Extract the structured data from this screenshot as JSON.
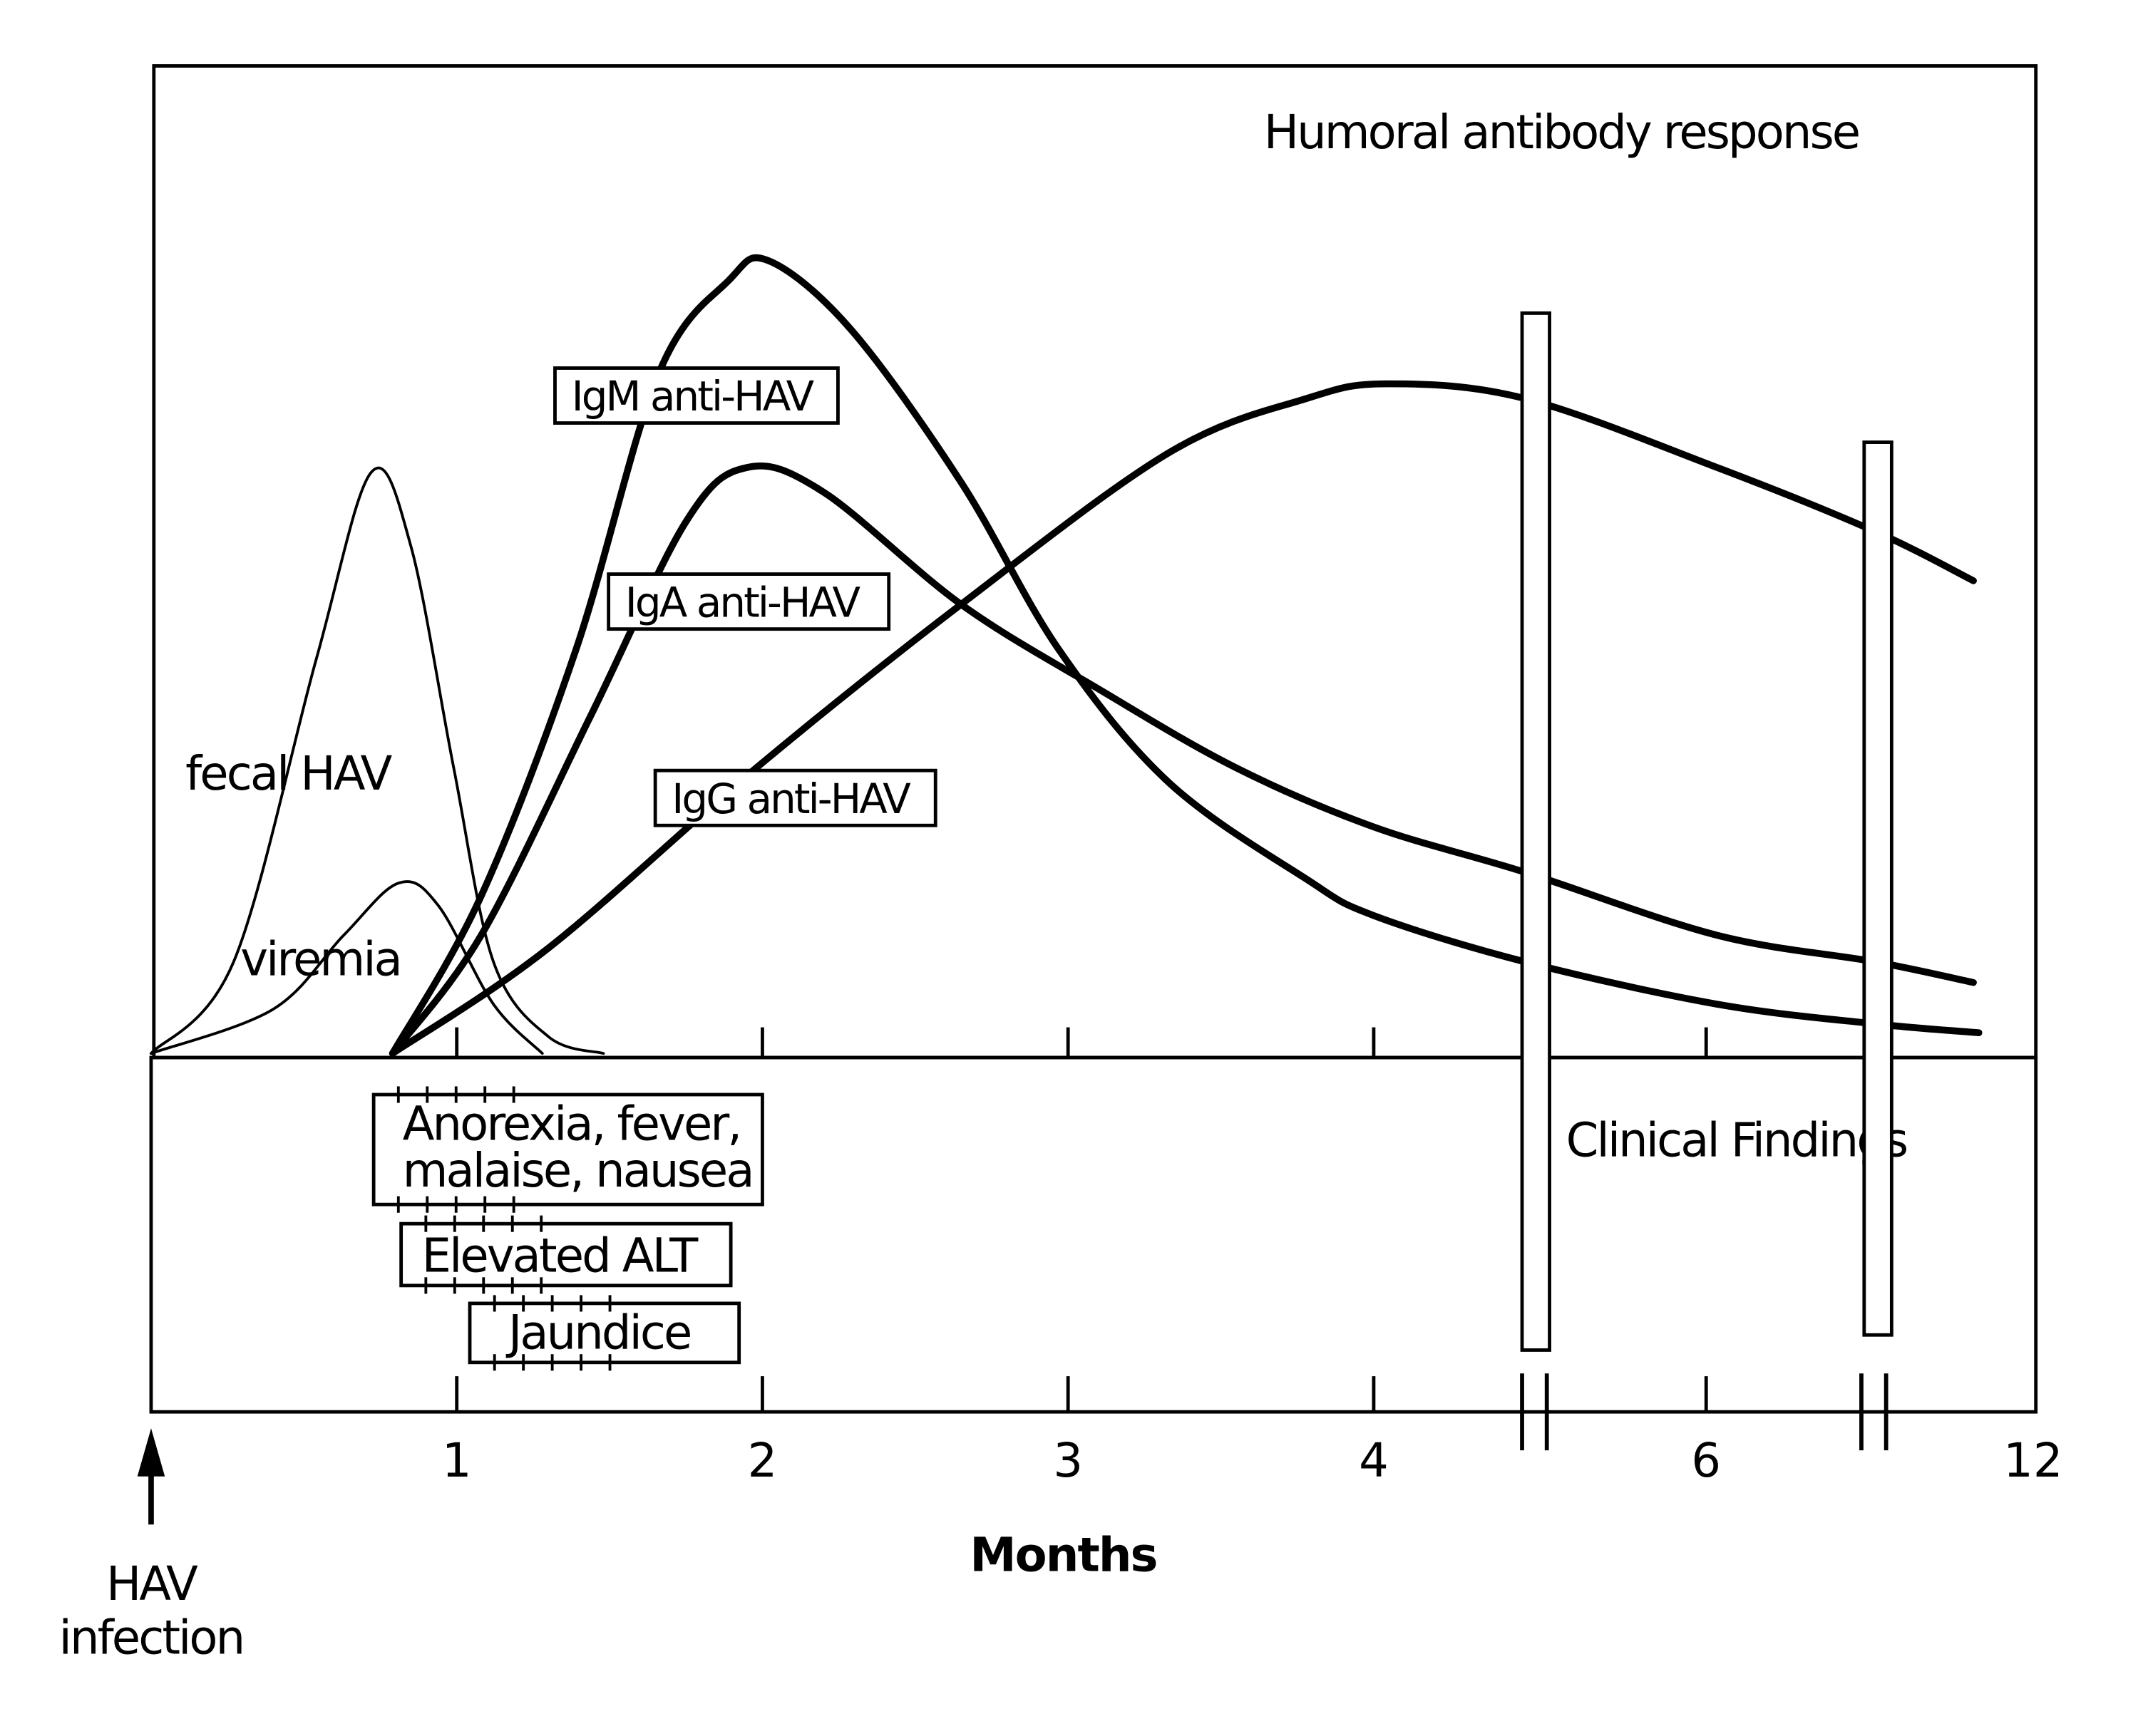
{
  "chart_data": {
    "type": "line",
    "title": "Humoral antibody response",
    "lower_panel_title": "Clinical Findings",
    "xlabel": "Months",
    "ylabel": "",
    "x_ticks": [
      "1",
      "2",
      "3",
      "4",
      "6",
      "12"
    ],
    "x_tick_values": [
      1,
      2,
      3,
      4,
      6,
      12
    ],
    "x_axis_breaks": [
      5,
      9.1
    ],
    "x_range": [
      0,
      12
    ],
    "y_range": [
      0,
      100
    ],
    "grid": false,
    "legend": "none (series labelled inline)",
    "start_marker": {
      "label_line1": "HAV",
      "label_line2": "infection",
      "x": 0,
      "icon": "up-arrow-icon"
    },
    "series": [
      {
        "name": "fecal HAV",
        "line": "thin",
        "x": [
          0,
          0.27,
          0.54,
          0.72,
          0.85,
          0.99,
          1.12,
          1.3,
          1.48
        ],
        "y": [
          0,
          9.3,
          40,
          59,
          51.5,
          29,
          9.3,
          1.7,
          0
        ]
      },
      {
        "name": "viremia",
        "line": "thin",
        "x": [
          0,
          0.4,
          0.63,
          0.81,
          0.94,
          1.12,
          1.28
        ],
        "y": [
          0,
          4.5,
          12,
          17.3,
          15,
          5,
          0
        ]
      },
      {
        "name": "IgM anti-HAV",
        "line": "thick",
        "x": [
          0.79,
          1.08,
          1.39,
          1.66,
          1.89,
          2.02,
          2.29,
          2.65,
          2.97,
          3.33,
          3.78,
          4.0,
          4.91,
          6.2,
          9.1,
          11.0
        ],
        "y": [
          0,
          16,
          41,
          69,
          78.5,
          80.5,
          73.5,
          58,
          41,
          27.5,
          17.7,
          14,
          9.3,
          5,
          3,
          2.1
        ]
      },
      {
        "name": "IgA anti-HAV",
        "line": "thick",
        "x": [
          0.79,
          1.08,
          1.44,
          1.75,
          1.95,
          2.2,
          2.65,
          3.1,
          3.55,
          4.0,
          4.91,
          6.2,
          9.1,
          10.9
        ],
        "y": [
          0,
          12,
          34.4,
          54,
          59.5,
          57,
          45.6,
          37,
          29,
          23,
          18.4,
          12,
          9.3,
          7.2
        ]
      },
      {
        "name": "IgG anti-HAV",
        "line": "thick",
        "x": [
          0.79,
          1.3,
          1.98,
          2.65,
          3.33,
          3.78,
          4.09,
          4.91,
          6.2,
          9.1,
          10.9
        ],
        "y": [
          0,
          10.7,
          29,
          45.6,
          61,
          66.5,
          68,
          66.5,
          59.5,
          53,
          48
        ]
      }
    ],
    "series_labels": {
      "fecal": "fecal HAV",
      "viremia": "viremia",
      "igm": "IgM anti-HAV",
      "iga": "IgA anti-HAV",
      "igg": "IgG anti-HAV"
    },
    "clinical_findings": [
      {
        "label_line1": "Anorexia, fever,",
        "label_line2": "malaise, nausea",
        "start_month": 0.72,
        "end_month": 1.3
      },
      {
        "label_line1": "Elevated ALT",
        "label_line2": "",
        "start_month": 0.81,
        "end_month": 1.3
      },
      {
        "label_line1": "Jaundice",
        "label_line2": "",
        "start_month": 1.04,
        "end_month": 1.45
      }
    ]
  }
}
